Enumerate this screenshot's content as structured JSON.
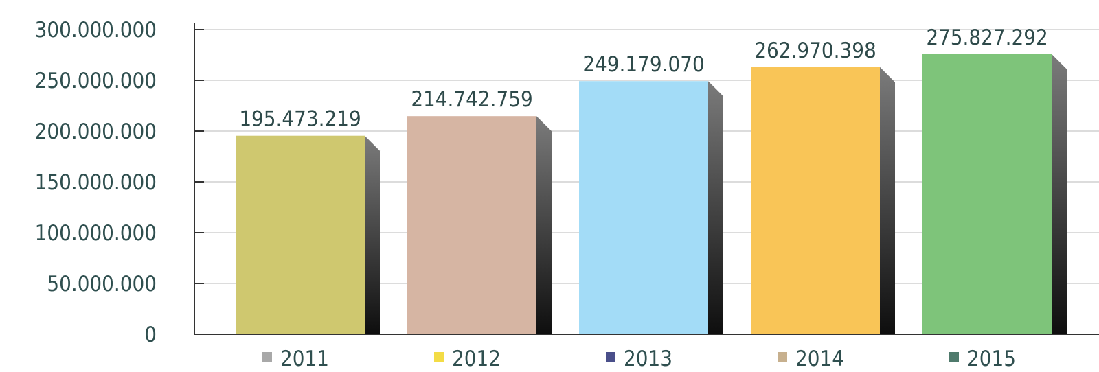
{
  "chart_data": {
    "type": "bar",
    "categories": [
      "2011",
      "2012",
      "2013",
      "2014",
      "2015"
    ],
    "values": [
      195473219,
      214742759,
      249179070,
      262970398,
      275827292
    ],
    "data_labels": [
      "195.473.219",
      "214.742.759",
      "249.179.070",
      "262.970.398",
      "275.827.292"
    ],
    "bar_colors": [
      "#cfc86f",
      "#d6b5a3",
      "#a3dcf7",
      "#f9c557",
      "#7ec47a"
    ],
    "ylim": [
      0,
      300000000
    ],
    "yticks": [
      0,
      50000000,
      100000000,
      150000000,
      200000000,
      250000000,
      300000000
    ],
    "ytick_labels": [
      "0",
      "50.000.000",
      "100.000.000",
      "150.000.000",
      "200.000.000",
      "250.000.000",
      "300.000.000"
    ],
    "grid": true,
    "title": "",
    "xlabel": "",
    "ylabel": "",
    "legend": {
      "placement": "bottom",
      "entries": [
        {
          "label": "2011",
          "color": "#a8a8a8"
        },
        {
          "label": "2012",
          "color": "#f3dc46"
        },
        {
          "label": "2013",
          "color": "#4a4f8a"
        },
        {
          "label": "2014",
          "color": "#c7b08e"
        },
        {
          "label": "2015",
          "color": "#4f7a6c"
        }
      ]
    }
  }
}
